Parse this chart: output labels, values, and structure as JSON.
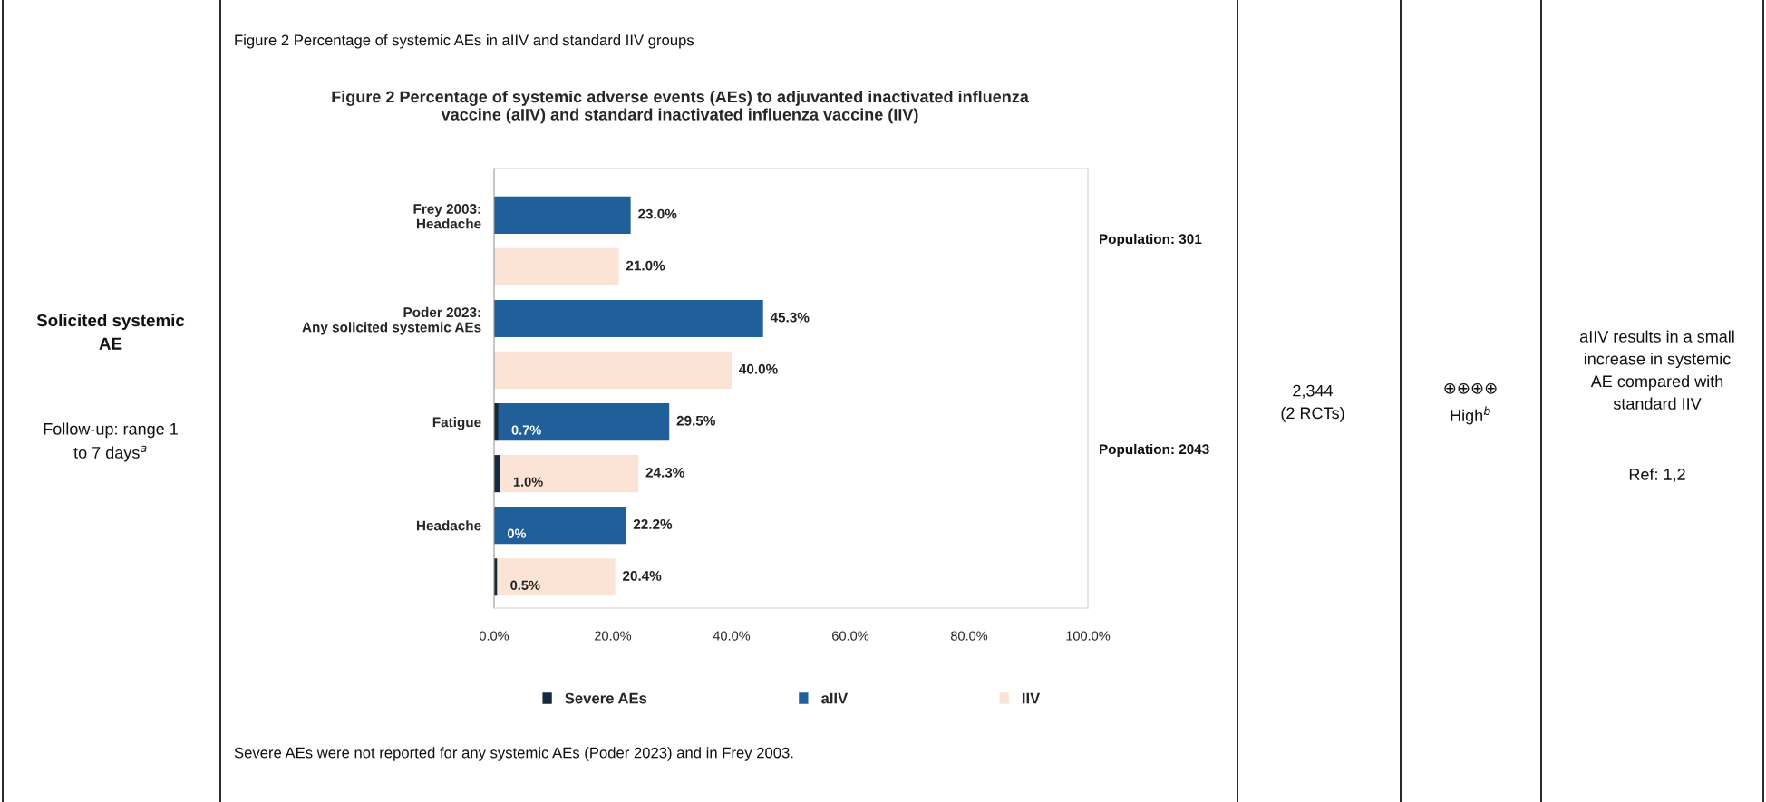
{
  "chart_data": {
    "type": "bar",
    "orientation": "horizontal",
    "title": "Figure 2 Percentage of systemic adverse events (AEs) to adjuvanted inactivated influenza\nvaccine (aIIV) and standard inactivated influenza vaccine (IIV)",
    "categories": [
      "Frey 2003:\nHeadache",
      null,
      "Poder 2023:\nAny solicited systemic AEs",
      null,
      "Fatigue",
      null,
      "Headache",
      null
    ],
    "series": [
      {
        "name": "Severe AEs",
        "color": "#13293d",
        "values": [
          null,
          null,
          null,
          null,
          0.7,
          1.0,
          0,
          0.5
        ],
        "value_labels": [
          null,
          null,
          null,
          null,
          "0.7%",
          "1.0%",
          "0%",
          "0.5%"
        ]
      },
      {
        "name": "aIIV",
        "color": "#215f9a",
        "values": [
          23.0,
          null,
          45.3,
          null,
          29.5,
          null,
          22.2,
          null
        ],
        "value_labels": [
          "23.0%",
          null,
          "45.3%",
          null,
          "29.5%",
          null,
          "22.2%",
          null
        ]
      },
      {
        "name": "IIV",
        "color": "#fbe3d6",
        "values": [
          null,
          21.0,
          null,
          40.0,
          null,
          24.3,
          null,
          20.4
        ],
        "value_labels": [
          null,
          "21.0%",
          null,
          "40.0%",
          null,
          "24.3%",
          null,
          "20.4%"
        ]
      }
    ],
    "xlim": [
      0,
      100
    ],
    "xticks": [
      {
        "value": 0,
        "label": "0.0%"
      },
      {
        "value": 20,
        "label": "20.0%"
      },
      {
        "value": 40,
        "label": "40.0%"
      },
      {
        "value": 60,
        "label": "60.0%"
      },
      {
        "value": 80,
        "label": "80.0%"
      },
      {
        "value": 100,
        "label": "100.0%"
      }
    ],
    "legend": "bottom",
    "grid": false,
    "annotations": [
      "Figure 2 Percentage of systemic AEs in aIIV and standard IIV groups",
      "Population: 301",
      "Population: 2043",
      "Severe AEs were not reported for any systemic AEs (Poder 2023) and in Frey 2003.",
      "Solicited systemic\nAE",
      "Follow-up: range 1\nto 7 days$^{a}$",
      "2,344\n(2 RCTs)",
      "⊕⊕⊕⊕\nHigh$^{b}$",
      "aIIV results in a small\nincrease in systemic\nAE compared with\nstandard IIV",
      "Ref: 1,2"
    ]
  }
}
